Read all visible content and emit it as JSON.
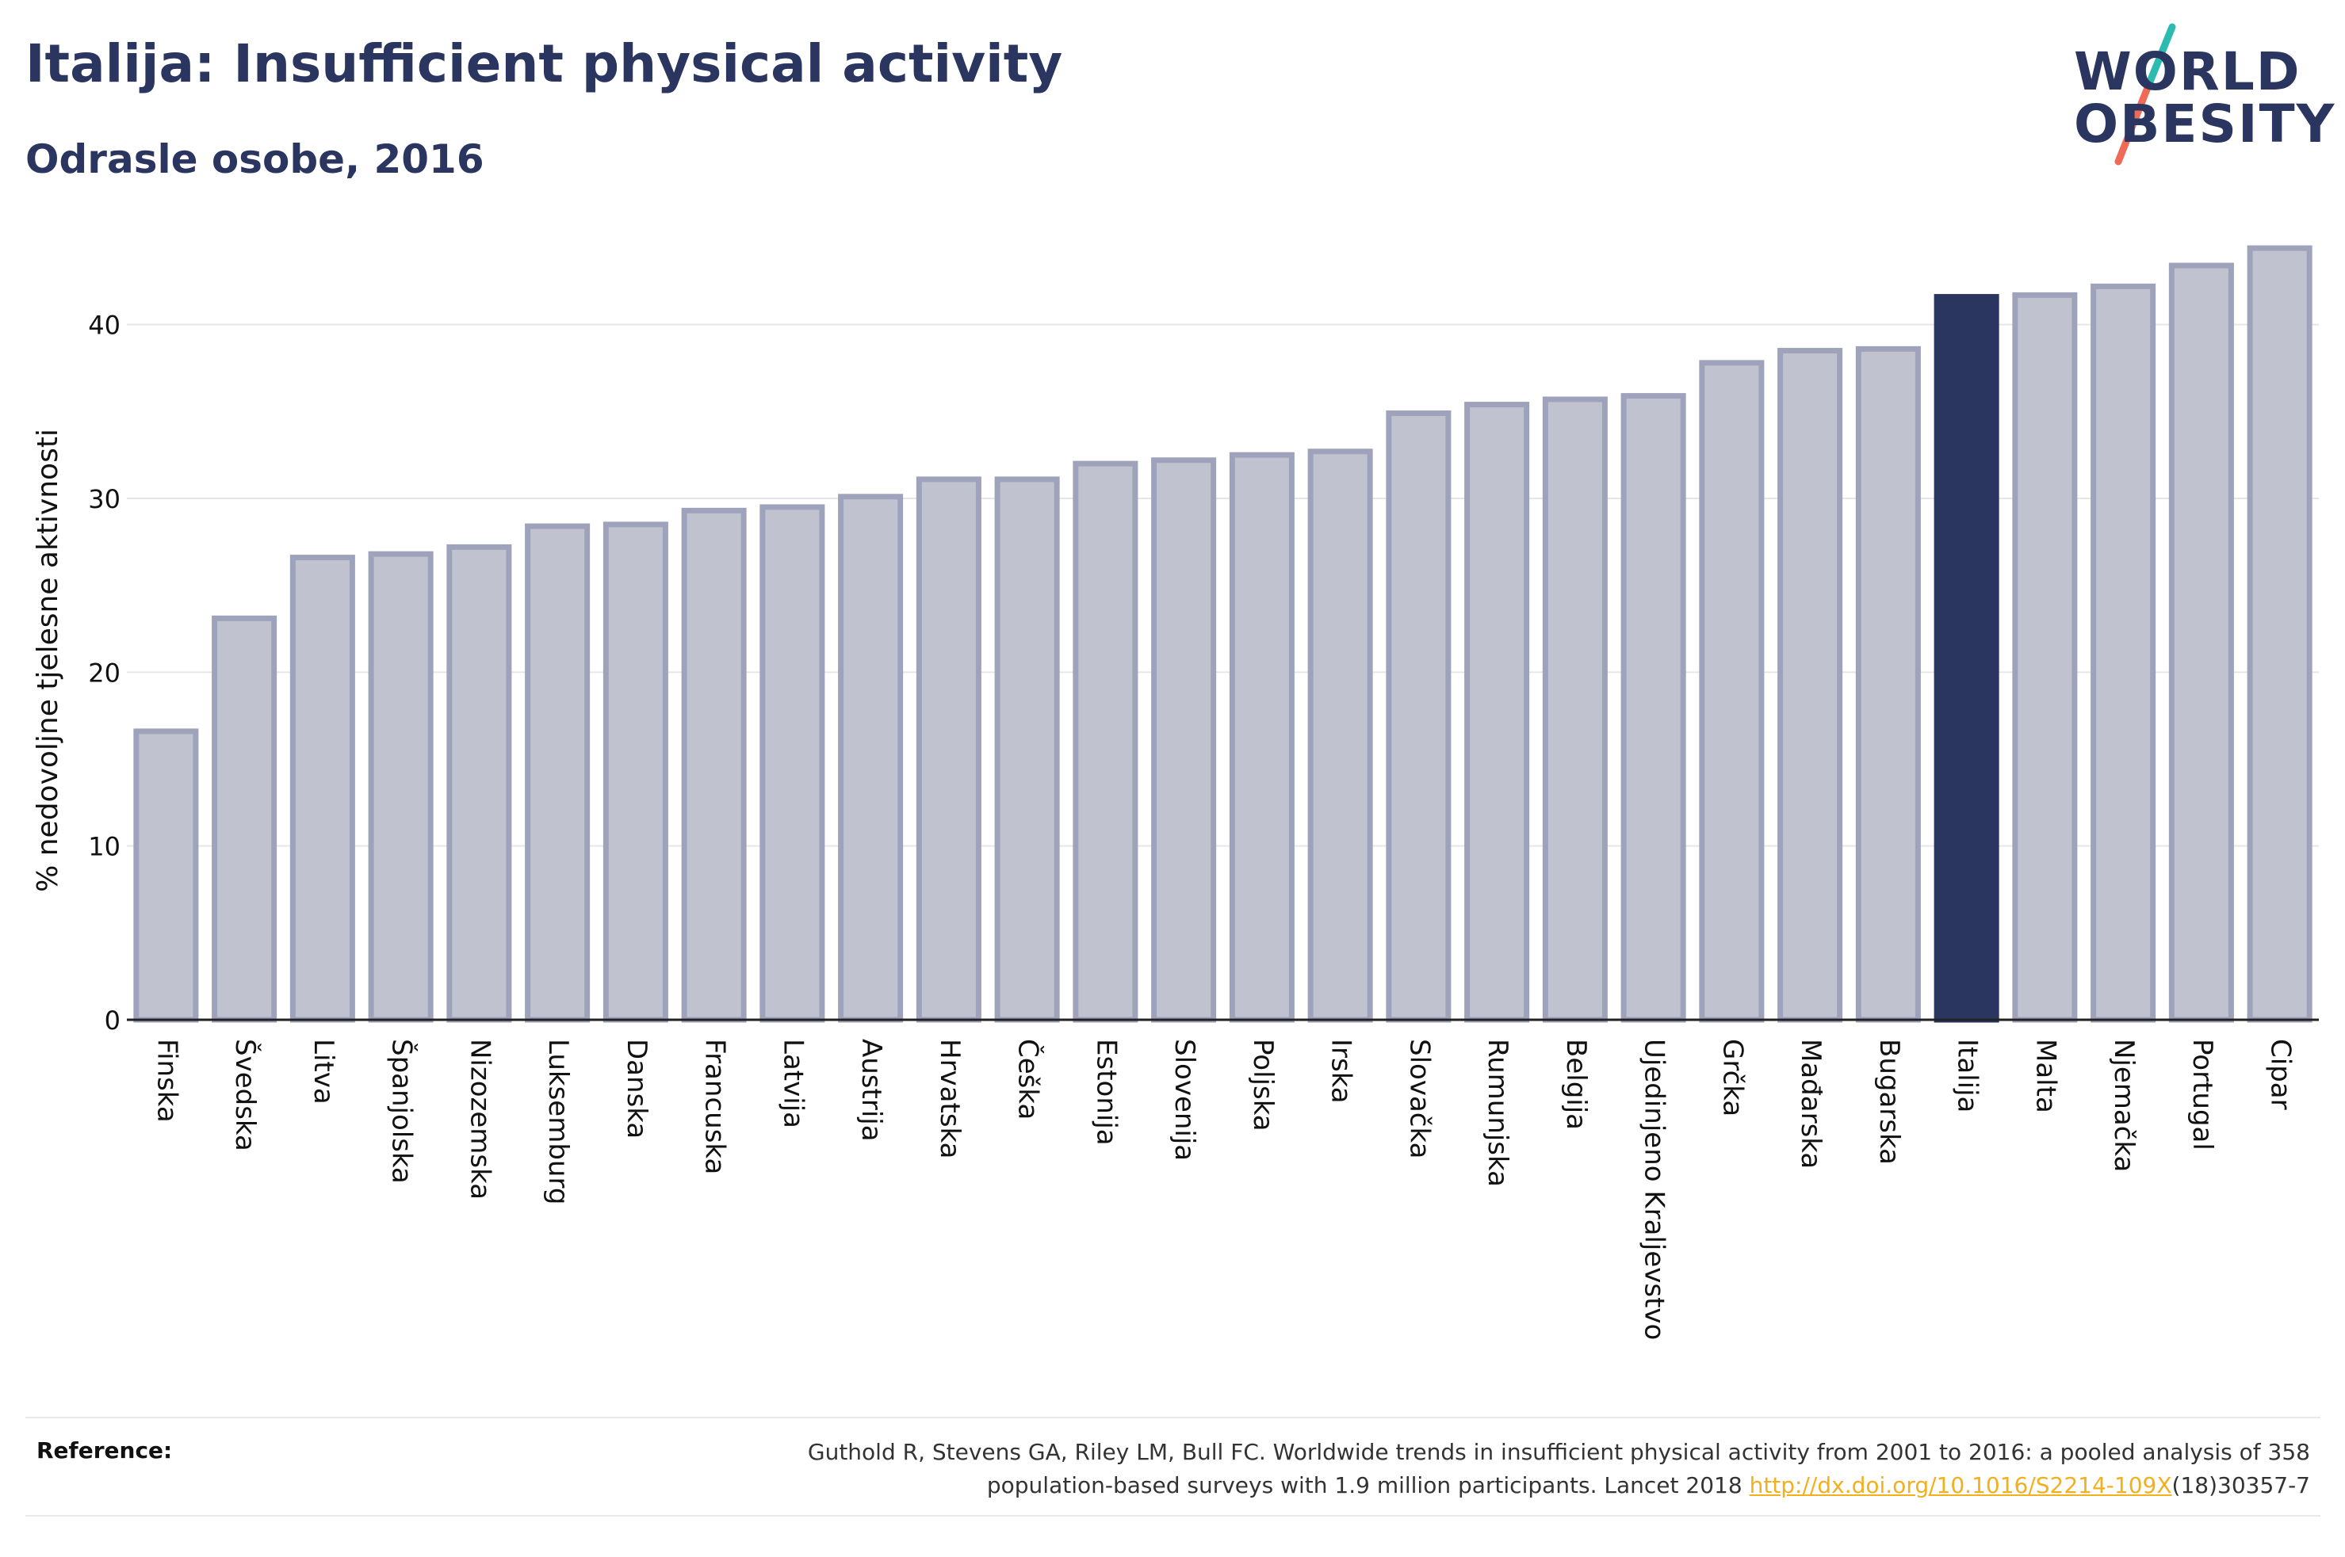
{
  "header": {
    "title": "Italija: Insufficient physical activity",
    "subtitle": "Odrasle osobe, 2016"
  },
  "logo": {
    "line1": "WORLD",
    "line2": "OBESITY",
    "colors": {
      "text": "#2a3560",
      "slash_top": "#2bbbb0",
      "slash_bottom": "#ef6b57"
    }
  },
  "colors": {
    "bar_default": "#c0c3cf",
    "bar_border": "#9ea3bb",
    "bar_highlight": "#2a3560",
    "axis_text": "#111111",
    "grid": "#e6e6ea"
  },
  "chart_data": {
    "type": "bar",
    "title": "Italija: Insufficient physical activity",
    "subtitle": "Odrasle osobe, 2016",
    "xlabel": "",
    "ylabel": "% nedovoljne tjelesne aktivnosti",
    "ylim": [
      0,
      45
    ],
    "yticks": [
      0,
      10,
      20,
      30,
      40
    ],
    "grid": true,
    "highlight": "Italija",
    "categories": [
      "Finska",
      "Švedska",
      "Litva",
      "Španjolska",
      "Nizozemska",
      "Luksemburg",
      "Danska",
      "Francuska",
      "Latvija",
      "Austrija",
      "Hrvatska",
      "Češka",
      "Estonija",
      "Slovenija",
      "Poljska",
      "Irska",
      "Slovačka",
      "Rumunjska",
      "Belgija",
      "Ujedinjeno Kraljevstvo",
      "Grčka",
      "Mađarska",
      "Bugarska",
      "Italija",
      "Malta",
      "Njemačka",
      "Portugal",
      "Cipar"
    ],
    "values": [
      16.6,
      23.1,
      26.6,
      26.8,
      27.2,
      28.4,
      28.5,
      29.3,
      29.5,
      30.1,
      31.1,
      31.1,
      32.0,
      32.2,
      32.5,
      32.7,
      34.9,
      35.4,
      35.7,
      35.9,
      37.8,
      38.5,
      38.6,
      41.6,
      41.7,
      42.2,
      43.4,
      44.4
    ]
  },
  "reference": {
    "label": "Reference:",
    "line1": "Guthold R, Stevens GA, Riley LM, Bull FC. Worldwide trends in insufficient physical activity from 2001 to 2016: a pooled analysis of 358",
    "line2_prefix": "population-based surveys with 1.9 million participants. Lancet 2018 ",
    "link": "http://dx.doi.org/10.1016/S2214-109X",
    "line2_suffix": "(18)30357-7"
  }
}
